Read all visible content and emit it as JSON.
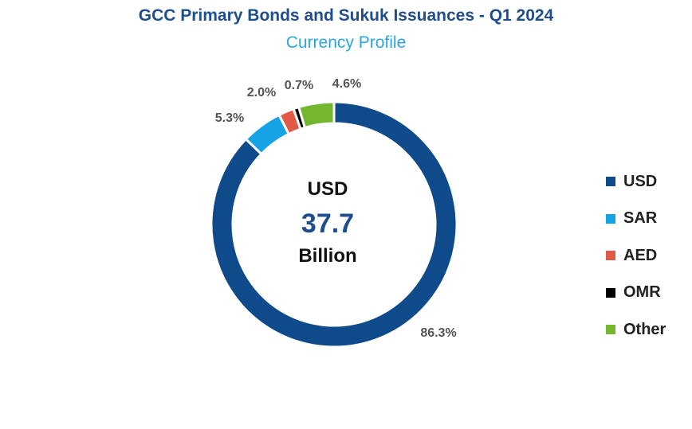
{
  "chart_data": {
    "type": "pie",
    "title": "GCC Primary Bonds and Sukuk Issuances - Q1 2024",
    "subtitle": "Currency Profile",
    "center": {
      "top": "USD",
      "value": "37.7",
      "bottom": "Billion"
    },
    "legend_position": "right",
    "slices": [
      {
        "name": "USD",
        "value": 86.3,
        "label": "86.3%",
        "color": "#0f4a8a"
      },
      {
        "name": "SAR",
        "value": 5.3,
        "label": "5.3%",
        "color": "#16a3e6"
      },
      {
        "name": "AED",
        "value": 2.0,
        "label": "2.0%",
        "color": "#e15a47"
      },
      {
        "name": "OMR",
        "value": 0.7,
        "label": "0.7%",
        "color": "#000000"
      },
      {
        "name": "Other",
        "value": 4.6,
        "label": "4.6%",
        "color": "#74b72e"
      }
    ]
  }
}
